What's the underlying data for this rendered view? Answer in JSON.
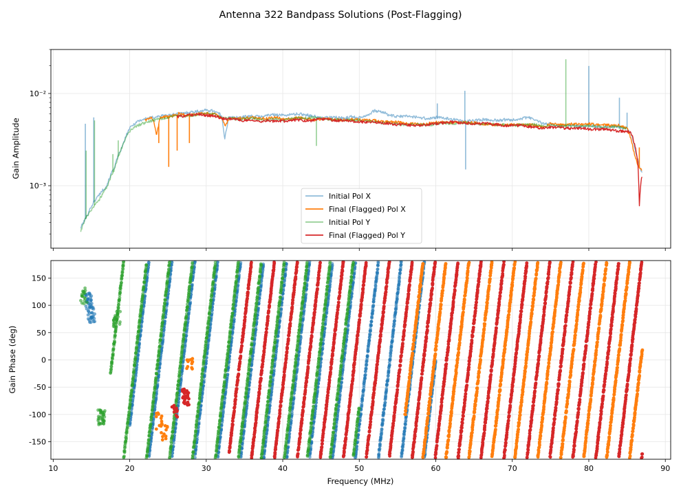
{
  "figure": {
    "title": "Antenna 322 Bandpass Solutions (Post-Flagging)"
  },
  "chart_data": [
    {
      "type": "line",
      "name": "amplitude",
      "title": "",
      "xlabel": "",
      "ylabel": "Gain Amplitude",
      "yscale": "log",
      "xlim": [
        9.7,
        90.7
      ],
      "ylim": [
        0.00021,
        0.03
      ],
      "x_ticks": [
        10,
        20,
        30,
        40,
        50,
        60,
        70,
        80,
        90
      ],
      "y_ticks": [
        {
          "value": 0.001,
          "label": "10⁻³"
        },
        {
          "value": 0.01,
          "label": "10⁻²"
        }
      ],
      "grid": true,
      "legend": {
        "position": "bottom-center",
        "entries": [
          "Initial Pol X",
          "Final (Flagged) Pol X",
          "Initial Pol Y",
          "Final (Flagged) Pol Y"
        ]
      },
      "series": [
        {
          "name": "Initial Pol X",
          "color": "#1f77b4",
          "opacity": 0.5,
          "x": [
            13.6,
            14.3,
            15,
            15.5,
            16,
            17,
            18,
            19,
            20,
            21,
            22,
            23,
            24,
            25,
            26,
            27,
            28,
            29,
            30,
            31,
            32,
            32.4,
            33,
            34,
            35,
            36,
            37,
            38,
            39,
            40,
            41,
            42,
            43,
            44,
            45,
            46,
            47,
            48,
            49,
            50,
            51,
            52,
            53,
            54,
            55,
            56,
            57,
            58,
            59,
            60,
            61,
            62,
            63,
            64,
            65,
            66,
            67,
            68,
            69,
            70,
            71,
            72,
            73,
            74,
            75,
            76,
            77,
            78,
            79,
            80,
            81,
            82,
            83,
            84,
            85,
            85.5,
            86,
            86.6,
            87
          ],
          "values": [
            0.00035,
            0.00045,
            0.0006,
            0.0007,
            0.0008,
            0.001,
            0.0016,
            0.0026,
            0.0042,
            0.005,
            0.0053,
            0.0055,
            0.0057,
            0.0058,
            0.006,
            0.0061,
            0.0063,
            0.0064,
            0.0066,
            0.0065,
            0.0058,
            0.0032,
            0.0055,
            0.0055,
            0.0056,
            0.0057,
            0.0056,
            0.0058,
            0.0059,
            0.0058,
            0.0059,
            0.006,
            0.0059,
            0.0057,
            0.0054,
            0.0055,
            0.0055,
            0.0054,
            0.0056,
            0.0055,
            0.0058,
            0.0065,
            0.0063,
            0.0058,
            0.0056,
            0.0057,
            0.0056,
            0.0055,
            0.0053,
            0.0055,
            0.0054,
            0.0053,
            0.0051,
            0.005,
            0.0051,
            0.0052,
            0.0052,
            0.0051,
            0.0052,
            0.0052,
            0.0053,
            0.0055,
            0.0052,
            0.0047,
            0.0047,
            0.0045,
            0.0045,
            0.0045,
            0.0044,
            0.0045,
            0.0044,
            0.0043,
            0.0044,
            0.0043,
            0.0042,
            0.0037,
            0.0025,
            0.0016,
            0.0014
          ],
          "spikes": [
            [
              14.2,
              0.0047
            ],
            [
              15.3,
              0.0055
            ],
            [
              60.2,
              0.0078
            ],
            [
              63.8,
              0.0107
            ],
            [
              63.9,
              0.0015
            ],
            [
              80,
              0.0199
            ],
            [
              84,
              0.009
            ],
            [
              85,
              0.0062
            ]
          ]
        },
        {
          "name": "Final (Flagged) Pol X",
          "color": "#ff7f0e",
          "opacity": 1,
          "x": [
            22,
            23,
            23.5,
            24,
            25,
            26,
            26.7,
            27,
            27.5,
            28,
            29,
            30,
            31,
            32,
            32.5,
            33,
            34,
            35,
            36,
            37,
            38,
            39,
            40,
            41,
            42,
            43,
            44,
            45,
            46,
            47,
            48,
            49,
            50,
            51,
            52,
            53,
            54,
            55,
            56,
            57,
            58,
            59,
            60,
            61,
            62,
            63,
            64,
            65,
            66,
            67,
            68,
            69,
            70,
            71,
            72,
            73,
            74,
            75,
            76,
            77,
            78,
            79,
            80,
            81,
            82,
            83,
            84,
            85,
            85.5,
            86,
            86.5,
            87
          ],
          "values": [
            0.0052,
            0.0054,
            0.0035,
            0.0055,
            0.0056,
            0.0058,
            0.0062,
            0.0059,
            0.0058,
            0.0058,
            0.006,
            0.0061,
            0.006,
            0.0055,
            0.0045,
            0.0054,
            0.0054,
            0.0054,
            0.0055,
            0.0053,
            0.0054,
            0.0055,
            0.0053,
            0.0054,
            0.0055,
            0.0053,
            0.0052,
            0.0053,
            0.0053,
            0.0052,
            0.0052,
            0.0052,
            0.0052,
            0.0051,
            0.0051,
            0.005,
            0.0049,
            0.0049,
            0.0047,
            0.0047,
            0.0046,
            0.0047,
            0.0049,
            0.0049,
            0.0048,
            0.0049,
            0.0049,
            0.0048,
            0.0047,
            0.0046,
            0.0046,
            0.0045,
            0.0046,
            0.0046,
            0.0046,
            0.0045,
            0.0043,
            0.0047,
            0.0046,
            0.0046,
            0.0047,
            0.0046,
            0.0047,
            0.0046,
            0.0046,
            0.0045,
            0.0045,
            0.0042,
            0.0032,
            0.0021,
            0.0016,
            0.0015
          ],
          "spikes": [
            [
              23.8,
              0.0029
            ],
            [
              25.1,
              0.0016
            ],
            [
              26.2,
              0.0024
            ],
            [
              27.8,
              0.0029
            ],
            [
              86.6,
              0.0026
            ]
          ]
        },
        {
          "name": "Initial Pol Y",
          "color": "#2ca02c",
          "opacity": 0.5,
          "x": [
            13.6,
            14,
            15,
            16,
            17,
            18,
            19,
            20,
            20.5,
            21,
            22,
            23,
            24,
            25,
            26,
            27,
            28,
            29,
            30,
            31,
            32,
            33,
            34,
            35,
            36,
            37,
            38,
            39,
            40,
            41,
            42,
            43,
            44,
            45,
            46,
            47,
            48,
            49,
            50,
            51,
            52,
            53,
            54,
            55,
            56,
            57,
            58,
            59,
            60,
            61,
            62,
            63,
            64,
            65,
            66,
            67,
            68,
            69,
            70,
            71,
            72,
            73,
            74,
            75,
            76,
            77,
            78,
            79,
            80,
            81,
            82,
            83,
            84,
            85
          ],
          "values": [
            0.00032,
            0.0004,
            0.00055,
            0.0007,
            0.00095,
            0.0015,
            0.0026,
            0.0039,
            0.0042,
            0.0045,
            0.0048,
            0.0051,
            0.0053,
            0.0055,
            0.0057,
            0.0057,
            0.0058,
            0.0059,
            0.006,
            0.006,
            0.0055,
            0.0054,
            0.0053,
            0.0053,
            0.0054,
            0.0052,
            0.0052,
            0.0053,
            0.0051,
            0.0053,
            0.0054,
            0.0054,
            0.0055,
            0.0054,
            0.0052,
            0.0052,
            0.0051,
            0.0052,
            0.0051,
            0.005,
            0.0049,
            0.0048,
            0.0048,
            0.0047,
            0.0046,
            0.0046,
            0.0046,
            0.0045,
            0.0047,
            0.0048,
            0.0047,
            0.0048,
            0.0048,
            0.0047,
            0.0047,
            0.0047,
            0.0046,
            0.0046,
            0.0045,
            0.0046,
            0.0046,
            0.0046,
            0.0044,
            0.0045,
            0.0044,
            0.0044,
            0.0045,
            0.0044,
            0.0045,
            0.0044,
            0.0043,
            0.0044,
            0.0043,
            0.0042
          ],
          "spikes": [
            [
              14.3,
              0.0024
            ],
            [
              15.4,
              0.0051
            ],
            [
              17.8,
              0.0022
            ],
            [
              18.5,
              0.0031
            ],
            [
              44.4,
              0.0027
            ],
            [
              77,
              0.0235
            ]
          ]
        },
        {
          "name": "Final (Flagged) Pol Y",
          "color": "#d62728",
          "opacity": 1,
          "x": [
            26.2,
            27,
            28,
            29,
            30,
            31,
            32,
            32.5,
            33,
            34,
            35,
            36,
            37,
            38,
            39,
            40,
            41,
            42,
            43,
            44,
            45,
            46,
            47,
            48,
            49,
            50,
            51,
            52,
            53,
            54,
            55,
            56,
            57,
            58,
            59,
            60,
            61,
            62,
            63,
            64,
            65,
            66,
            67,
            68,
            69,
            70,
            71,
            72,
            73,
            74,
            75,
            76,
            77,
            78,
            79,
            80,
            81,
            82,
            83,
            84,
            85,
            85.5,
            86,
            86.4,
            86.6,
            86.8,
            87
          ],
          "values": [
            0.0056,
            0.0057,
            0.0059,
            0.006,
            0.0058,
            0.0057,
            0.0054,
            0.0053,
            0.0053,
            0.0052,
            0.0051,
            0.0051,
            0.005,
            0.0051,
            0.005,
            0.005,
            0.0051,
            0.0052,
            0.0051,
            0.0051,
            0.0053,
            0.0052,
            0.0051,
            0.0051,
            0.005,
            0.0049,
            0.0049,
            0.0049,
            0.0048,
            0.0047,
            0.0046,
            0.0046,
            0.0045,
            0.0045,
            0.0046,
            0.0047,
            0.0048,
            0.0049,
            0.0048,
            0.0048,
            0.0047,
            0.0047,
            0.0047,
            0.0046,
            0.0045,
            0.0045,
            0.0045,
            0.0044,
            0.0043,
            0.0042,
            0.0043,
            0.0043,
            0.0042,
            0.0042,
            0.0042,
            0.0041,
            0.0041,
            0.0041,
            0.004,
            0.0039,
            0.0039,
            0.0038,
            0.0028,
            0.0018,
            0.0006,
            0.0011,
            0.0013
          ],
          "spikes": []
        }
      ]
    },
    {
      "type": "scatter",
      "name": "phase",
      "title": "",
      "xlabel": "Frequency (MHz)",
      "ylabel": "Gain Phase (deg)",
      "xlim": [
        9.7,
        90.7
      ],
      "ylim": [
        -182,
        182
      ],
      "x_ticks": [
        10,
        20,
        30,
        40,
        50,
        60,
        70,
        80,
        90
      ],
      "y_ticks": [
        -150,
        -100,
        -50,
        0,
        50,
        100,
        150
      ],
      "grid": true,
      "legend": null,
      "phase_slope_deg_per_mhz": 120,
      "series": [
        {
          "name": "Initial Pol X",
          "color": "#1f77b4",
          "opacity": 0.6,
          "x_range": [
            20,
            60
          ],
          "wrap_offset_deg": 0,
          "clusters": [
            {
              "x": 14.6,
              "y": 108,
              "n": 30
            },
            {
              "x": 15,
              "y": 82,
              "n": 25
            }
          ]
        },
        {
          "name": "Final (Flagged) Pol X",
          "color": "#ff7f0e",
          "opacity": 1,
          "x_range": [
            56,
            87
          ],
          "wrap_offset_deg": 20,
          "clusters": [
            {
              "x": 23.9,
              "y": -112,
              "n": 12
            },
            {
              "x": 24.5,
              "y": -135,
              "n": 10
            },
            {
              "x": 27.8,
              "y": -12,
              "n": 12
            }
          ]
        },
        {
          "name": "Initial Pol Y",
          "color": "#2ca02c",
          "opacity": 0.6,
          "x_range": [
            17.5,
            50
          ],
          "wrap_offset_deg": 35,
          "clusters": [
            {
              "x": 14,
              "y": 118,
              "n": 18
            },
            {
              "x": 16.3,
              "y": -104,
              "n": 35
            },
            {
              "x": 18.3,
              "y": 75,
              "n": 20
            }
          ]
        },
        {
          "name": "Final (Flagged) Pol Y",
          "color": "#d62728",
          "opacity": 1,
          "x_range": [
            33,
            87
          ],
          "wrap_offset_deg": 190,
          "clusters": [
            {
              "x": 25.9,
              "y": -95,
              "n": 10
            },
            {
              "x": 27.3,
              "y": -68,
              "n": 30
            }
          ]
        }
      ]
    }
  ]
}
